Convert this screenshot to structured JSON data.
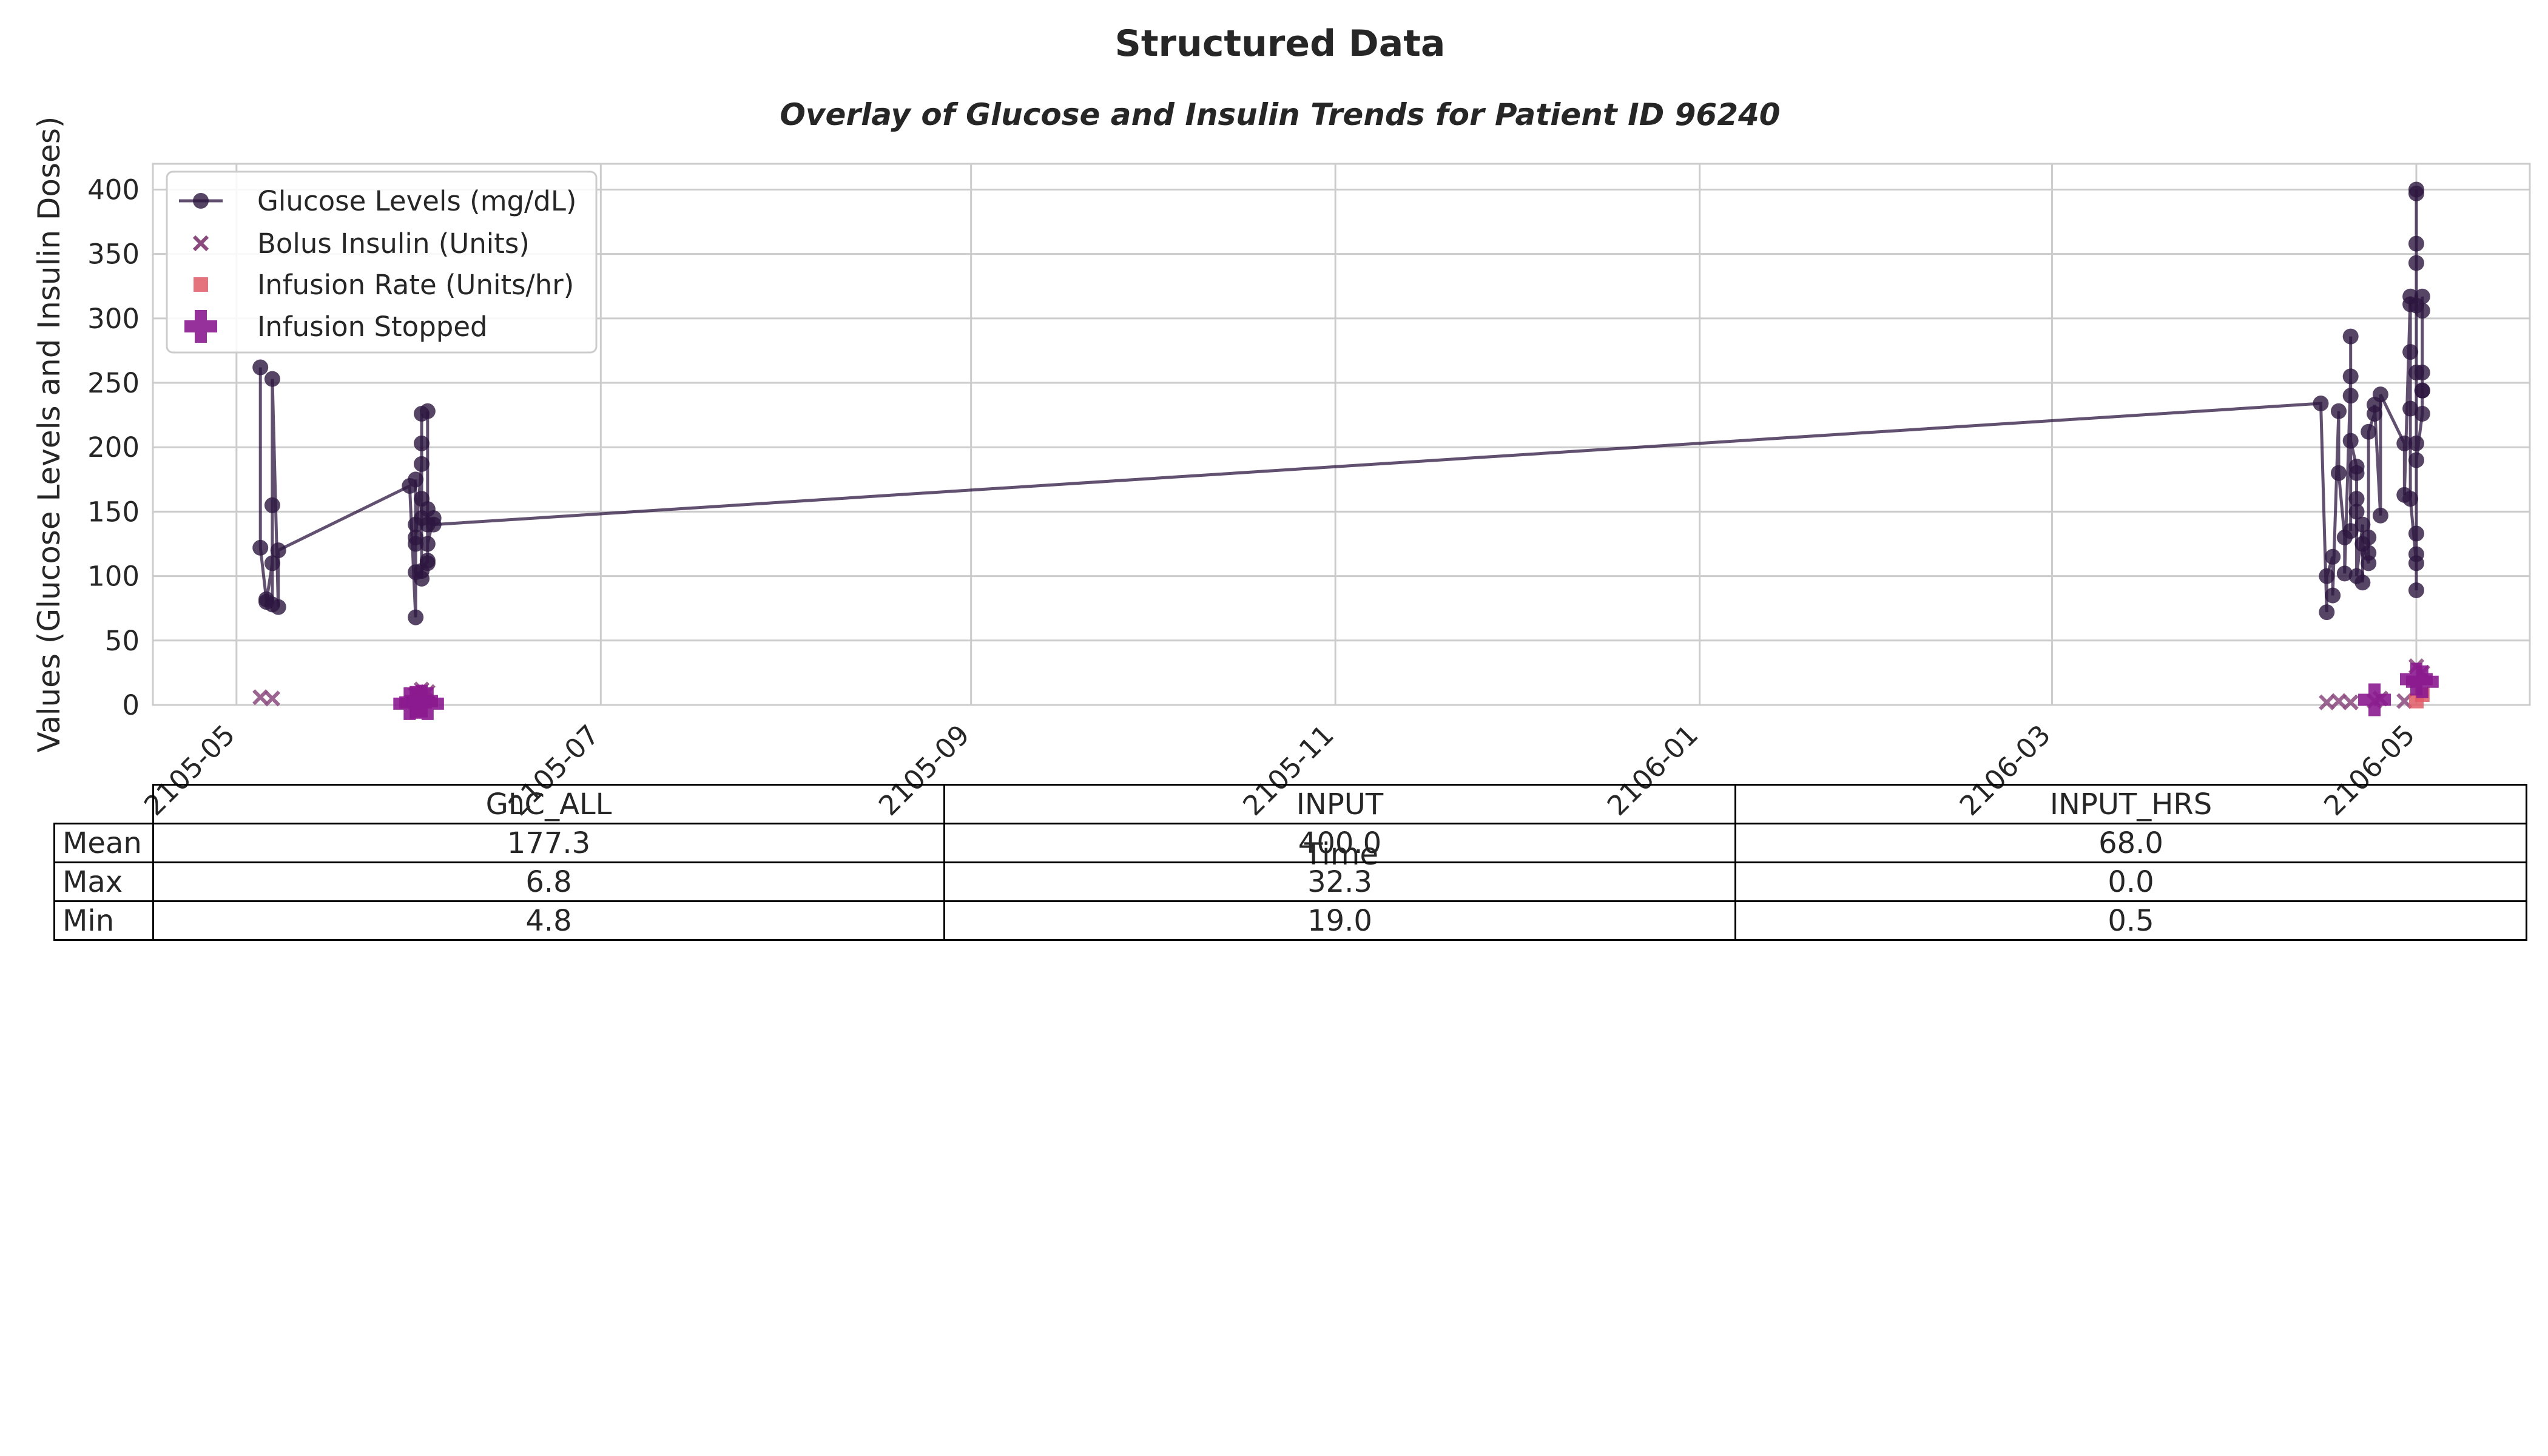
{
  "figure": {
    "suptitle": "Structured Data"
  },
  "chart_data": {
    "type": "line",
    "title": "Overlay of Glucose and Insulin Trends for Patient ID 96240",
    "xlabel": "Time",
    "ylabel": "Values (Glucose Levels and Insulin Doses)",
    "xlim": [
      "2105-04-17",
      "2106-05-20"
    ],
    "ylim": [
      0,
      420
    ],
    "x_ticks": [
      "2105-05",
      "2105-07",
      "2105-09",
      "2105-11",
      "2106-01",
      "2106-03",
      "2106-05"
    ],
    "y_ticks": [
      0,
      50,
      100,
      150,
      200,
      250,
      300,
      350,
      400
    ],
    "grid": true,
    "legend_position": "upper-left",
    "colors": {
      "glucose": "#2d1640",
      "bolus": "#8b4a7e",
      "infusion_rate": "#e05a66",
      "infusion_stopped": "#8b1a8f"
    },
    "series": [
      {
        "name": "Glucose Levels (mg/dL)",
        "kind": "line-marker",
        "points": [
          [
            "2105-05-05",
            262
          ],
          [
            "2105-05-05",
            122
          ],
          [
            "2105-05-06",
            82
          ],
          [
            "2105-05-06",
            80
          ],
          [
            "2105-05-07",
            110
          ],
          [
            "2105-05-07",
            78
          ],
          [
            "2105-05-07",
            155
          ],
          [
            "2105-05-07",
            253
          ],
          [
            "2105-05-08",
            76
          ],
          [
            "2105-05-08",
            120
          ],
          [
            "2105-05-30",
            170
          ],
          [
            "2105-05-31",
            68
          ],
          [
            "2105-05-31",
            103
          ],
          [
            "2105-05-31",
            125
          ],
          [
            "2105-05-31",
            175
          ],
          [
            "2105-05-31",
            140
          ],
          [
            "2105-05-31",
            130
          ],
          [
            "2105-06-01",
            187
          ],
          [
            "2105-06-01",
            203
          ],
          [
            "2105-06-01",
            226
          ],
          [
            "2105-06-01",
            160
          ],
          [
            "2105-06-01",
            98
          ],
          [
            "2105-06-01",
            145
          ],
          [
            "2105-06-01",
            104
          ],
          [
            "2105-06-02",
            112
          ],
          [
            "2105-06-02",
            152
          ],
          [
            "2105-06-02",
            228
          ],
          [
            "2105-06-02",
            140
          ],
          [
            "2105-06-02",
            110
          ],
          [
            "2105-06-02",
            125
          ],
          [
            "2105-06-03",
            145
          ],
          [
            "2105-06-03",
            140
          ],
          [
            "2106-04-15",
            234
          ],
          [
            "2106-04-16",
            72
          ],
          [
            "2106-04-16",
            100
          ],
          [
            "2106-04-17",
            115
          ],
          [
            "2106-04-17",
            85
          ],
          [
            "2106-04-18",
            228
          ],
          [
            "2106-04-18",
            180
          ],
          [
            "2106-04-19",
            130
          ],
          [
            "2106-04-19",
            102
          ],
          [
            "2106-04-20",
            255
          ],
          [
            "2106-04-20",
            286
          ],
          [
            "2106-04-20",
            135
          ],
          [
            "2106-04-20",
            240
          ],
          [
            "2106-04-20",
            205
          ],
          [
            "2106-04-21",
            185
          ],
          [
            "2106-04-21",
            160
          ],
          [
            "2106-04-21",
            150
          ],
          [
            "2106-04-21",
            180
          ],
          [
            "2106-04-21",
            100
          ],
          [
            "2106-04-22",
            140
          ],
          [
            "2106-04-22",
            95
          ],
          [
            "2106-04-22",
            125
          ],
          [
            "2106-04-23",
            110
          ],
          [
            "2106-04-23",
            118
          ],
          [
            "2106-04-23",
            130
          ],
          [
            "2106-04-23",
            212
          ],
          [
            "2106-04-24",
            226
          ],
          [
            "2106-04-24",
            233
          ],
          [
            "2106-04-25",
            147
          ],
          [
            "2106-04-25",
            241
          ],
          [
            "2106-04-29",
            203
          ],
          [
            "2106-04-29",
            163
          ],
          [
            "2106-04-30",
            317
          ],
          [
            "2106-04-30",
            311
          ],
          [
            "2106-04-30",
            274
          ],
          [
            "2106-04-30",
            230
          ],
          [
            "2106-04-30",
            160
          ],
          [
            "2106-05-01",
            110
          ],
          [
            "2106-05-01",
            89
          ],
          [
            "2106-05-01",
            203
          ],
          [
            "2106-05-01",
            258
          ],
          [
            "2106-05-01",
            310
          ],
          [
            "2106-05-01",
            400
          ],
          [
            "2106-05-01",
            397
          ],
          [
            "2106-05-01",
            343
          ],
          [
            "2106-05-01",
            358
          ],
          [
            "2106-05-01",
            133
          ],
          [
            "2106-05-01",
            117
          ],
          [
            "2106-05-01",
            190
          ],
          [
            "2106-05-02",
            226
          ],
          [
            "2106-05-02",
            244
          ],
          [
            "2106-05-02",
            258
          ],
          [
            "2106-05-02",
            306
          ],
          [
            "2106-05-02",
            317
          ],
          [
            "2106-05-02",
            244
          ]
        ]
      },
      {
        "name": "Bolus Insulin (Units)",
        "kind": "x-marker",
        "points": [
          [
            "2105-05-05",
            6
          ],
          [
            "2105-05-07",
            5
          ],
          [
            "2105-05-31",
            8
          ],
          [
            "2105-06-01",
            12
          ],
          [
            "2105-06-02",
            10
          ],
          [
            "2106-04-16",
            2
          ],
          [
            "2106-04-18",
            3
          ],
          [
            "2106-04-20",
            2
          ],
          [
            "2106-04-24",
            3
          ],
          [
            "2106-04-25",
            5
          ],
          [
            "2106-04-29",
            3
          ],
          [
            "2106-05-01",
            30
          ],
          [
            "2106-05-02",
            25
          ]
        ]
      },
      {
        "name": "Infusion Rate (Units/hr)",
        "kind": "square-marker",
        "points": [
          [
            "2105-05-31",
            2
          ],
          [
            "2105-06-01",
            3
          ],
          [
            "2106-05-01",
            3
          ],
          [
            "2106-05-02",
            8
          ]
        ]
      },
      {
        "name": "Infusion Stopped",
        "kind": "plus-marker",
        "points": [
          [
            "2105-05-30",
            1
          ],
          [
            "2105-05-31",
            2
          ],
          [
            "2105-06-01",
            3
          ],
          [
            "2105-06-02",
            1
          ],
          [
            "2106-04-24",
            4
          ],
          [
            "2106-05-01",
            20
          ],
          [
            "2106-05-02",
            18
          ]
        ]
      }
    ]
  },
  "table": {
    "columns": [
      "GLC_ALL",
      "INPUT",
      "INPUT_HRS"
    ],
    "rows": [
      {
        "label": "Mean",
        "values": [
          "177.3",
          "400.0",
          "68.0"
        ]
      },
      {
        "label": "Max",
        "values": [
          "6.8",
          "32.3",
          "0.0"
        ]
      },
      {
        "label": "Min",
        "values": [
          "4.8",
          "19.0",
          "0.5"
        ]
      }
    ]
  }
}
